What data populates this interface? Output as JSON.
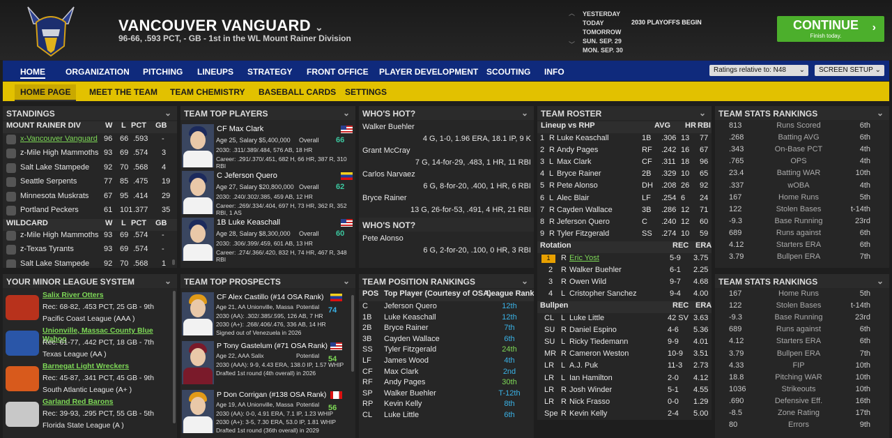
{
  "team": {
    "name": "VANCOUVER VANGUARD",
    "summary": "96-66, .593 PCT, - GB - 1st in the WL Mount Rainer Division"
  },
  "calendar": {
    "days": [
      "YESTERDAY",
      "TODAY",
      "TOMORROW",
      "SUN. SEP. 29",
      "MON. SEP. 30"
    ],
    "event": "2030 PLAYOFFS BEGIN"
  },
  "continue": {
    "label": "CONTINUE",
    "sub": "Finish today.",
    "color": "#4caf2c"
  },
  "nav": {
    "items": [
      "HOME",
      "ORGANIZATION",
      "PITCHING",
      "LINEUPS",
      "STRATEGY",
      "FRONT OFFICE",
      "PLAYER DEVELOPMENT",
      "SCOUTING",
      "INFO"
    ],
    "ratings_select": "Ratings relative to: N48",
    "screen_setup": "SCREEN SETUP"
  },
  "subnav": {
    "items": [
      "HOME PAGE",
      "MEET THE TEAM",
      "TEAM CHEMISTRY",
      "BASEBALL CARDS",
      "SETTINGS"
    ]
  },
  "standings": {
    "title": "STANDINGS",
    "div_header": [
      "MOUNT RAINER DIV",
      "W",
      "L",
      "PCT",
      "GB"
    ],
    "div_rows": [
      [
        "x-Vancouver Vanguard",
        "96",
        "66",
        ".593",
        "-"
      ],
      [
        "z-Mile High Mammoths",
        "93",
        "69",
        ".574",
        "3"
      ],
      [
        "Salt Lake Stampede",
        "92",
        "70",
        ".568",
        "4"
      ],
      [
        "Seattle Serpents",
        "77",
        "85",
        ".475",
        "19"
      ],
      [
        "Minnesota Muskrats",
        "67",
        "95",
        ".414",
        "29"
      ],
      [
        "Portland Peckers",
        "61",
        "101",
        ".377",
        "35"
      ]
    ],
    "wc_header": [
      "WILDCARD",
      "W",
      "L",
      "PCT",
      "GB"
    ],
    "wc_rows": [
      [
        "z-Mile High Mammoths",
        "93",
        "69",
        ".574",
        "-"
      ],
      [
        "z-Texas Tyrants",
        "93",
        "69",
        ".574",
        "-"
      ],
      [
        "Salt Lake Stampede",
        "92",
        "70",
        ".568",
        "1"
      ]
    ]
  },
  "top_players": {
    "title": "TEAM TOP PLAYERS",
    "players": [
      {
        "name": "CF Max Clark",
        "info": "Age 25, Salary $5,400,000",
        "overall_label": "Overall",
        "overall": "66",
        "line1": "2030: .311/.389/.484, 576 AB, 18 HR",
        "line2": "Career: .291/.370/.451, 682 H, 66 HR, 387 R, 310 RBI"
      },
      {
        "name": "C Jeferson Quero",
        "info": "Age 27, Salary $20,800,000",
        "overall_label": "Overall",
        "overall": "62",
        "line1": "2030: .240/.302/.385, 459 AB, 12 HR",
        "line2": "Career: .269/.334/.404, 697 H, 73 HR, 362 R, 352 RBI, 1 AS"
      },
      {
        "name": "1B Luke Keaschall",
        "info": "Age 28, Salary $8,300,000",
        "overall_label": "Overall",
        "overall": "60",
        "line1": "2030: .306/.399/.459, 601 AB, 13 HR",
        "line2": "Career: .274/.366/.420, 832 H, 74 HR, 467 R, 348 RBI"
      }
    ]
  },
  "whos_hot": {
    "title": "WHO'S HOT?",
    "entries": [
      [
        "Walker Buehler",
        "4 G, 1-0, 1.96 ERA, 18.1 IP, 9 K"
      ],
      [
        "Grant McCray",
        "7 G, 14-for-29, .483, 1 HR, 11 RBI"
      ],
      [
        "Carlos Narvaez",
        "6 G, 8-for-20, .400, 1 HR, 6 RBI"
      ],
      [
        "Bryce Rainer",
        "13 G, 26-for-53, .491, 4 HR, 21 RBI"
      ]
    ],
    "not_title": "WHO'S NOT?",
    "not_entries": [
      [
        "Pete Alonso",
        "6 G, 2-for-20, .100, 0 HR, 3 RBI"
      ]
    ]
  },
  "roster": {
    "title": "TEAM ROSTER",
    "lineup_header": [
      "Lineup vs RHP",
      "AVG",
      "HR",
      "RBI"
    ],
    "lineup": [
      [
        "1",
        "R",
        "Luke Keaschall",
        "1B",
        ".306",
        "13",
        "77"
      ],
      [
        "2",
        "R",
        "Andy Pages",
        "RF",
        ".242",
        "16",
        "67"
      ],
      [
        "3",
        "L",
        "Max Clark",
        "CF",
        ".311",
        "18",
        "96"
      ],
      [
        "4",
        "L",
        "Bryce Rainer",
        "2B",
        ".329",
        "10",
        "65"
      ],
      [
        "5",
        "R",
        "Pete Alonso",
        "DH",
        ".208",
        "26",
        "92"
      ],
      [
        "6",
        "L",
        "Alec Blair",
        "LF",
        ".254",
        "6",
        "24"
      ],
      [
        "7",
        "R",
        "Cayden Wallace",
        "3B",
        ".286",
        "12",
        "71"
      ],
      [
        "8",
        "R",
        "Jeferson Quero",
        "C",
        ".240",
        "12",
        "60"
      ],
      [
        "9",
        "R",
        "Tyler Fitzgerald",
        "SS",
        ".274",
        "10",
        "59"
      ]
    ],
    "rotation_header": [
      "Rotation",
      "REC",
      "ERA"
    ],
    "rotation": [
      [
        "1",
        "R",
        "Eric Yost",
        "5-9",
        "3.75"
      ],
      [
        "2",
        "R",
        "Walker Buehler",
        "6-1",
        "2.25"
      ],
      [
        "3",
        "R",
        "Owen Wild",
        "9-7",
        "4.68"
      ],
      [
        "4",
        "L",
        "Cristopher Sanchez",
        "9-4",
        "4.00"
      ]
    ],
    "bullpen_header": [
      "Bullpen",
      "REC",
      "ERA"
    ],
    "bullpen": [
      [
        "CL",
        "L",
        "Luke Little",
        "42 SV",
        "3.63"
      ],
      [
        "SU",
        "R",
        "Daniel Espino",
        "4-6",
        "5.36"
      ],
      [
        "SU",
        "L",
        "Ricky Tiedemann",
        "9-9",
        "4.01"
      ],
      [
        "MR",
        "R",
        "Cameron Weston",
        "10-9",
        "3.51"
      ],
      [
        "LR",
        "L",
        "A.J. Puk",
        "11-3",
        "2.73"
      ],
      [
        "LR",
        "L",
        "Ian Hamilton",
        "2-0",
        "4.12"
      ],
      [
        "LR",
        "R",
        "Josh Winder",
        "5-1",
        "4.55"
      ],
      [
        "LR",
        "R",
        "Nick Frasso",
        "0-0",
        "1.29"
      ],
      [
        "Spe",
        "R",
        "Kevin Kelly",
        "2-4",
        "5.00"
      ]
    ]
  },
  "stats1": {
    "title": "TEAM STATS RANKINGS",
    "rows": [
      [
        "813",
        "Runs Scored",
        "6th"
      ],
      [
        ".268",
        "Batting AVG",
        "6th"
      ],
      [
        ".343",
        "On-Base PCT",
        "4th"
      ],
      [
        ".765",
        "OPS",
        "4th"
      ],
      [
        "23.4",
        "Batting WAR",
        "10th"
      ],
      [
        ".337",
        "wOBA",
        "4th"
      ],
      [
        "167",
        "Home Runs",
        "5th"
      ],
      [
        "122",
        "Stolen Bases",
        "t-14th"
      ],
      [
        "-9.3",
        "Base Running",
        "23rd"
      ],
      [
        "689",
        "Runs against",
        "6th"
      ],
      [
        "4.12",
        "Starters ERA",
        "6th"
      ],
      [
        "3.79",
        "Bullpen ERA",
        "7th"
      ]
    ]
  },
  "stats2": {
    "title": "TEAM STATS RANKINGS",
    "rows": [
      [
        "167",
        "Home Runs",
        "5th"
      ],
      [
        "122",
        "Stolen Bases",
        "t-14th"
      ],
      [
        "-9.3",
        "Base Running",
        "23rd"
      ],
      [
        "689",
        "Runs against",
        "6th"
      ],
      [
        "4.12",
        "Starters ERA",
        "6th"
      ],
      [
        "3.79",
        "Bullpen ERA",
        "7th"
      ],
      [
        "4.33",
        "FIP",
        "10th"
      ],
      [
        "18.8",
        "Pitching WAR",
        "10th"
      ],
      [
        "1036",
        "Strikeouts",
        "10th"
      ],
      [
        ".690",
        "Defensive Eff.",
        "16th"
      ],
      [
        "-8.5",
        "Zone Rating",
        "17th"
      ],
      [
        "80",
        "Errors",
        "9th"
      ]
    ]
  },
  "minors": {
    "title": "YOUR MINOR LEAGUE SYSTEM",
    "teams": [
      {
        "name": "Salix River Otters",
        "rec": "Rec: 68-82, .453 PCT, 25 GB - 9th",
        "league": "Pacific Coast League (AAA )"
      },
      {
        "name": "Unionville, Massac County Blue Wahoo",
        "rec": "Rec: 61-77, .442 PCT, 18 GB - 7th",
        "league": "Texas League (AA )"
      },
      {
        "name": "Barnegat Light Wreckers",
        "rec": "Rec: 45-87, .341 PCT, 45 GB - 9th",
        "league": "South Atlantic League (A+ )"
      },
      {
        "name": "Garland Red Barons",
        "rec": "Rec: 39-93, .295 PCT, 55 GB - 5th",
        "league": "Florida State League (A )"
      }
    ]
  },
  "prospects": {
    "title": "TEAM TOP PROSPECTS",
    "players": [
      {
        "name": "CF Alex Castillo (#14 OSA Rank)",
        "info": "Age 21, AA Unionville, Massa",
        "pot_label": "Potential",
        "pot": "74",
        "line1": "2030 (AA): .302/.385/.595, 126 AB, 7 HR",
        "line2": "2030 (A+): .268/.406/.476, 336 AB, 14 HR",
        "line3": "Signed out of Venezuela in 2026"
      },
      {
        "name": "P Tony Gastelum (#71 OSA Rank)",
        "info": "Age 22, AAA Salix",
        "pot_label": "Potential",
        "pot": "54",
        "line1": "2030 (AAA): 9-9, 4.43 ERA, 138.0 IP, 1.57 WHIP",
        "line2": "Drafted 1st round (4th overall) in 2026",
        "line3": ""
      },
      {
        "name": "P Don Corrigan (#138 OSA Rank)",
        "info": "Age 19, AA Unionville, Massa",
        "pot_label": "Potential",
        "pot": "56",
        "line1": "2030 (AA): 0-0, 4.91 ERA, 7.1 IP, 1.23 WHIP",
        "line2": "2030 (A+): 3-5, 7.30 ERA, 53.0 IP, 1.81 WHIP",
        "line3": "Drafted 1st round (36th overall) in 2029"
      }
    ]
  },
  "positions": {
    "title": "TEAM POSITION RANKINGS",
    "header": [
      "POS",
      "Top Player (Courtesy of OSA)",
      "League Rank"
    ],
    "rows": [
      [
        "C",
        "Jeferson Quero",
        "12th"
      ],
      [
        "1B",
        "Luke Keaschall",
        "12th"
      ],
      [
        "2B",
        "Bryce Rainer",
        "7th"
      ],
      [
        "3B",
        "Cayden Wallace",
        "6th"
      ],
      [
        "SS",
        "Tyler Fitzgerald",
        "24th"
      ],
      [
        "LF",
        "James Wood",
        "4th"
      ],
      [
        "CF",
        "Max Clark",
        "2nd"
      ],
      [
        "RF",
        "Andy Pages",
        "30th"
      ],
      [
        "SP",
        "Walker Buehler",
        "T-12th"
      ],
      [
        "RP",
        "Kevin Kelly",
        "8th"
      ],
      [
        "CL",
        "Luke Little",
        "6th"
      ]
    ]
  }
}
